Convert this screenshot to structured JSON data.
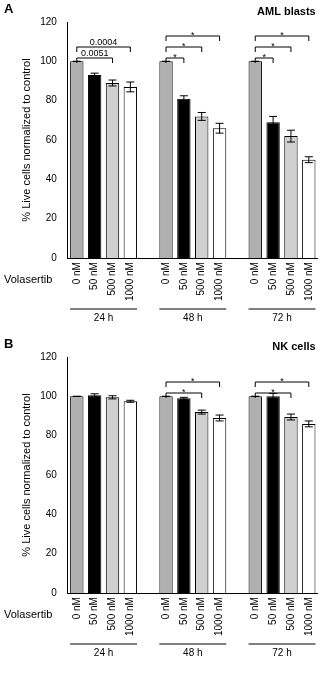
{
  "chart_data": [
    {
      "type": "bar",
      "panel": "A",
      "title": "AML blasts",
      "y_label": "% Live cells normalized to control",
      "x_label": "Volasertib",
      "categories": [
        "0 nM",
        "50 nM",
        "500 nM",
        "1000 nM",
        null,
        "0 nM",
        "50 nM",
        "500 nM",
        "1000 nM",
        null,
        "0 nM",
        "50 nM",
        "500 nM",
        "1000 nM"
      ],
      "values": [
        100,
        93,
        89,
        87,
        null,
        100,
        81,
        72,
        66,
        null,
        100,
        69,
        62,
        50
      ],
      "errors": [
        0,
        1,
        1.5,
        2.5,
        null,
        0,
        1.5,
        2,
        2.5,
        null,
        0,
        3,
        3,
        1.5
      ],
      "colors": [
        "#b0b0b0",
        "#000000",
        "#d0d0d0",
        "#ffffff",
        null,
        "#b0b0b0",
        "#000000",
        "#d0d0d0",
        "#ffffff",
        null,
        "#b0b0b0",
        "#000000",
        "#d0d0d0",
        "#ffffff"
      ],
      "groups": [
        {
          "label": "24 h",
          "start": 0,
          "end": 3
        },
        {
          "label": "48 h",
          "start": 5,
          "end": 8
        },
        {
          "label": "72 h",
          "start": 10,
          "end": 13
        }
      ],
      "annotations": [
        {
          "from": 0,
          "to": 2,
          "text": "0.0051"
        },
        {
          "from": 0,
          "to": 3,
          "text": "0.0004"
        },
        {
          "from": 5,
          "to": 6,
          "text": "*"
        },
        {
          "from": 5,
          "to": 7,
          "text": "*"
        },
        {
          "from": 5,
          "to": 8,
          "text": "*"
        },
        {
          "from": 10,
          "to": 11,
          "text": "*"
        },
        {
          "from": 10,
          "to": 12,
          "text": "*"
        },
        {
          "from": 10,
          "to": 13,
          "text": "*"
        }
      ],
      "ylim": [
        0,
        120
      ],
      "yticks": [
        0,
        20,
        40,
        60,
        80,
        100,
        120
      ],
      "grid": false
    },
    {
      "type": "bar",
      "panel": "B",
      "title": "NK cells",
      "y_label": "% Live cells normalized to control",
      "x_label": "Volasertib",
      "categories": [
        "0 nM",
        "50 nM",
        "500 nM",
        "1000 nM",
        null,
        "0 nM",
        "50 nM",
        "500 nM",
        "1000 nM",
        null,
        "0 nM",
        "50 nM",
        "500 nM",
        "1000 nM"
      ],
      "values": [
        100,
        100.5,
        99.5,
        97.5,
        null,
        100,
        99,
        92,
        89,
        null,
        100,
        100,
        89.5,
        86
      ],
      "errors": [
        0,
        0.8,
        0.8,
        0.5,
        null,
        0,
        0.5,
        1,
        1.5,
        null,
        0,
        1.5,
        1.5,
        1.5
      ],
      "colors": [
        "#b0b0b0",
        "#000000",
        "#d0d0d0",
        "#ffffff",
        null,
        "#b0b0b0",
        "#000000",
        "#d0d0d0",
        "#ffffff",
        null,
        "#b0b0b0",
        "#000000",
        "#d0d0d0",
        "#ffffff"
      ],
      "groups": [
        {
          "label": "24 h",
          "start": 0,
          "end": 3
        },
        {
          "label": "48 h",
          "start": 5,
          "end": 8
        },
        {
          "label": "72 h",
          "start": 10,
          "end": 13
        }
      ],
      "annotations": [
        {
          "from": 5,
          "to": 7,
          "text": "*"
        },
        {
          "from": 5,
          "to": 8,
          "text": "*"
        },
        {
          "from": 10,
          "to": 12,
          "text": "*"
        },
        {
          "from": 10,
          "to": 13,
          "text": "*"
        }
      ],
      "ylim": [
        0,
        120
      ],
      "yticks": [
        0,
        20,
        40,
        60,
        80,
        100,
        120
      ],
      "grid": false
    }
  ]
}
